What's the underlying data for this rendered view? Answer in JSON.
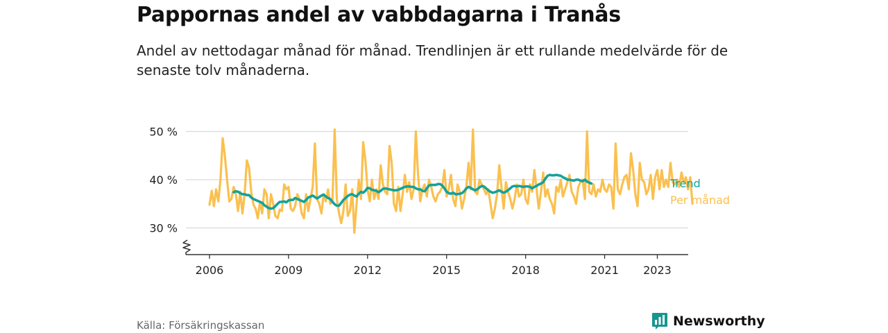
{
  "header": {
    "title": "Pappornas andel av vabbdagarna i Tranås",
    "subtitle": "Andel av nettodagar månad för månad. Trendlinjen är ett rullande medelvärde för de senaste tolv månaderna."
  },
  "footer": {
    "source": "Källa: Försäkringskassan",
    "brand": "Newsworthy"
  },
  "colors": {
    "monthly": "#fac04f",
    "trend": "#14a29a",
    "brand": "#15968f",
    "grid": "#d9d9d9",
    "axis": "#333333"
  },
  "chart_data": {
    "type": "line",
    "title": "Pappornas andel av vabbdagarna i Tranås",
    "xlabel": "",
    "ylabel": "",
    "x_start": "2006-01",
    "x_end": "2023-05",
    "ylim": [
      24.5,
      52
    ],
    "yticks": [
      30,
      40,
      50
    ],
    "ytick_labels": [
      "30 %",
      "40 %",
      "50 %"
    ],
    "xticks": [
      2006,
      2009,
      2012,
      2015,
      2018,
      2021,
      2023
    ],
    "xtick_labels": [
      "2006",
      "2009",
      "2012",
      "2015",
      "2018",
      "2021",
      "2023"
    ],
    "y_axis_break": true,
    "grid": "horizontal",
    "legend": "direct labels at line ends",
    "series": [
      {
        "name": "Trend",
        "start": "2006-12",
        "values": [
          37.4,
          37.6,
          37.5,
          37.2,
          37.0,
          37.0,
          36.8,
          36.8,
          36.3,
          36.0,
          35.8,
          35.6,
          35.4,
          35.2,
          34.7,
          34.4,
          34.1,
          34.0,
          34.1,
          34.5,
          35.0,
          35.4,
          35.4,
          35.5,
          35.3,
          35.7,
          35.8,
          35.8,
          36.2,
          36.0,
          35.8,
          35.6,
          35.4,
          35.8,
          36.3,
          36.5,
          36.7,
          36.4,
          36.1,
          36.4,
          36.7,
          36.9,
          36.5,
          36.2,
          36.0,
          35.4,
          34.9,
          34.6,
          34.6,
          35.2,
          35.8,
          36.2,
          36.6,
          36.9,
          37.0,
          36.7,
          36.5,
          37.1,
          37.5,
          37.3,
          37.7,
          38.3,
          38.2,
          37.9,
          37.8,
          37.7,
          37.4,
          37.7,
          38.1,
          38.2,
          38.1,
          38.0,
          37.9,
          37.8,
          37.8,
          37.9,
          38.1,
          38.3,
          38.5,
          38.6,
          38.6,
          38.5,
          38.5,
          38.2,
          38.0,
          38.0,
          37.7,
          37.6,
          38.2,
          38.8,
          38.9,
          38.9,
          38.9,
          39.1,
          39.1,
          38.8,
          38.2,
          37.5,
          37.2,
          37.1,
          37.3,
          37.0,
          37.0,
          37.1,
          37.2,
          37.6,
          38.2,
          38.5,
          38.3,
          38.0,
          37.8,
          38.0,
          38.4,
          38.7,
          38.6,
          38.2,
          37.8,
          37.5,
          37.3,
          37.4,
          37.6,
          37.8,
          37.5,
          37.3,
          37.5,
          37.8,
          38.2,
          38.6,
          38.7,
          38.6,
          38.7,
          38.6,
          38.5,
          38.6,
          38.6,
          38.5,
          38.2,
          38.5,
          38.7,
          39.0,
          39.2,
          39.5,
          40.2,
          40.8,
          41.0,
          40.9,
          40.9,
          41.0,
          40.9,
          40.8,
          40.5,
          40.3,
          40.0,
          40.0,
          39.9,
          39.8,
          40.0,
          40.0,
          39.8,
          39.7,
          40.0,
          39.6,
          39.4,
          39.2
        ]
      },
      {
        "name": "Per månad",
        "start": "2006-01",
        "values": [
          34.8,
          37.7,
          34.5,
          38.0,
          35.5,
          40.0,
          48.6,
          45.0,
          40.0,
          35.5,
          36.0,
          38.5,
          37.0,
          33.5,
          37.5,
          33.0,
          37.0,
          44.0,
          42.5,
          37.5,
          34.8,
          34.0,
          32.0,
          35.5,
          33.0,
          38.0,
          37.0,
          32.0,
          37.0,
          35.0,
          32.5,
          32.0,
          33.8,
          33.5,
          39.0,
          38.0,
          38.5,
          34.0,
          33.5,
          34.5,
          37.0,
          36.0,
          33.0,
          32.0,
          37.0,
          33.5,
          36.0,
          38.5,
          47.5,
          36.0,
          35.0,
          33.0,
          37.0,
          35.5,
          38.0,
          35.0,
          35.5,
          50.4,
          36.0,
          33.0,
          31.0,
          33.5,
          39.0,
          32.5,
          33.5,
          38.0,
          29.0,
          35.0,
          40.0,
          36.0,
          47.8,
          44.0,
          38.0,
          35.5,
          40.0,
          36.0,
          38.0,
          36.0,
          43.0,
          39.0,
          37.5,
          37.0,
          47.0,
          43.5,
          35.0,
          33.5,
          38.5,
          33.5,
          37.0,
          41.0,
          37.5,
          39.5,
          36.0,
          38.0,
          50.0,
          41.0,
          35.5,
          38.0,
          39.0,
          36.5,
          40.0,
          38.5,
          36.5,
          35.5,
          37.0,
          37.5,
          38.5,
          42.0,
          36.5,
          38.0,
          41.0,
          36.0,
          34.5,
          39.0,
          37.5,
          34.0,
          36.0,
          38.5,
          43.5,
          38.0,
          50.4,
          37.5,
          37.0,
          40.0,
          39.0,
          38.0,
          37.0,
          38.0,
          35.0,
          32.0,
          34.0,
          37.0,
          43.0,
          38.5,
          34.0,
          39.5,
          37.5,
          36.0,
          34.0,
          36.0,
          39.0,
          36.5,
          37.0,
          40.0,
          36.0,
          35.0,
          39.0,
          37.5,
          42.0,
          38.0,
          34.0,
          37.5,
          41.5,
          36.5,
          38.0,
          36.0,
          35.0,
          33.0,
          38.5,
          37.5,
          40.0,
          36.5,
          38.0,
          39.5,
          41.0,
          37.5,
          36.5,
          35.0,
          38.5,
          39.5,
          40.0,
          36.0,
          50.0,
          37.5,
          37.0,
          39.0,
          36.5,
          38.0,
          37.5,
          40.0,
          38.0,
          37.5,
          39.0,
          38.5,
          34.0,
          47.5,
          38.0,
          37.0,
          39.0,
          40.5,
          41.0,
          38.0,
          45.5,
          42.0,
          37.0,
          34.5,
          43.5,
          40.0,
          39.5,
          37.0,
          38.0,
          41.0,
          36.0,
          40.5,
          42.0,
          38.0,
          42.0,
          38.5,
          40.0,
          38.5,
          43.5,
          39.5,
          39.0,
          40.0,
          38.5,
          41.5,
          39.5,
          40.5,
          38.0,
          40.5,
          35.0
        ]
      }
    ]
  }
}
